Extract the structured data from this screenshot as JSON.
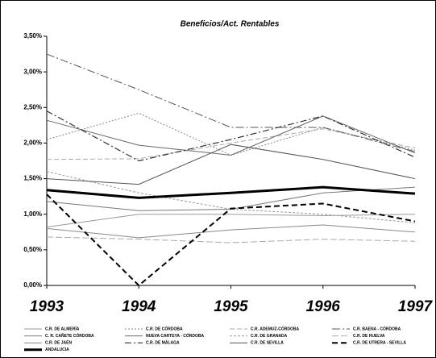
{
  "chart_data": {
    "type": "line",
    "title": "Beneficios/Act. Rentables",
    "categories": [
      "1993",
      "1994",
      "1995",
      "1996",
      "1997"
    ],
    "ylim": [
      0,
      3.5
    ],
    "yticks": [
      {
        "value": 0,
        "label": "0,00%"
      },
      {
        "value": 0.5,
        "label": "0,50%"
      },
      {
        "value": 1,
        "label": "1,00%"
      },
      {
        "value": 1.5,
        "label": "1,50%"
      },
      {
        "value": 2,
        "label": "2,00%"
      },
      {
        "value": 2.5,
        "label": "2,50%"
      },
      {
        "value": 3,
        "label": "3,00%"
      },
      {
        "value": 3.5,
        "label": "3,50%"
      }
    ],
    "series": [
      {
        "name": "C.R. DE ALMERÍA",
        "color": "#999999",
        "dash": "none",
        "width": 1,
        "values": [
          0.82,
          1.0,
          1.0,
          0.98,
          1.0
        ]
      },
      {
        "name": "C.R. DE CÓRDOBA",
        "color": "#888888",
        "dash": "2,2",
        "width": 1,
        "values": [
          2.05,
          2.42,
          1.83,
          2.22,
          1.9
        ]
      },
      {
        "name": "C.R. ADEMUZ-CÓRDOBA",
        "color": "#aaaaaa",
        "dash": "6,3",
        "width": 1,
        "values": [
          1.77,
          1.78,
          2.0,
          2.2,
          1.93
        ]
      },
      {
        "name": "C.R. BAENA - CÓRDOBA",
        "color": "#555555",
        "dash": "10,3,2,3",
        "width": 1,
        "values": [
          3.25,
          2.75,
          2.22,
          2.22,
          1.88
        ]
      },
      {
        "name": "C. R. CAÑETE CÓRDOBA",
        "color": "#777777",
        "dash": "none",
        "width": 1,
        "values": [
          1.18,
          1.05,
          1.07,
          1.3,
          1.38
        ]
      },
      {
        "name": "NUEVA CARTEYA - CÓRDOBA",
        "color": "#666666",
        "dash": "none",
        "width": 1,
        "values": [
          2.32,
          1.97,
          1.83,
          2.38,
          1.86
        ]
      },
      {
        "name": "C.R. DE GRANADA",
        "color": "#999999",
        "dash": "3,2",
        "width": 1,
        "values": [
          1.6,
          1.3,
          1.07,
          1.0,
          0.88
        ]
      },
      {
        "name": "C.R. DE HUELVA",
        "color": "#aaaaaa",
        "dash": "8,3",
        "width": 1,
        "values": [
          0.68,
          0.65,
          0.6,
          0.65,
          0.62
        ]
      },
      {
        "name": "C.R. DE JAÉN",
        "color": "#888888",
        "dash": "none",
        "width": 1,
        "values": [
          0.8,
          0.67,
          0.78,
          0.85,
          0.75
        ]
      },
      {
        "name": "C.R. DE MÁLAGA",
        "color": "#333333",
        "dash": "8,3,2,3",
        "width": 1.2,
        "values": [
          2.45,
          1.75,
          2.05,
          2.38,
          1.8
        ]
      },
      {
        "name": "C.R. DE SEVILLA",
        "color": "#555555",
        "dash": "none",
        "width": 1,
        "values": [
          1.5,
          1.42,
          1.98,
          1.77,
          1.5
        ]
      },
      {
        "name": "C.R. DE UTRERA - SEVILLA",
        "color": "#000000",
        "dash": "7,4",
        "width": 2,
        "values": [
          1.28,
          0,
          1.08,
          1.15,
          0.9
        ]
      },
      {
        "name": "ANDALUCIA",
        "color": "#000000",
        "dash": "none",
        "width": 3,
        "values": [
          1.34,
          1.23,
          1.3,
          1.38,
          1.29
        ]
      }
    ]
  }
}
